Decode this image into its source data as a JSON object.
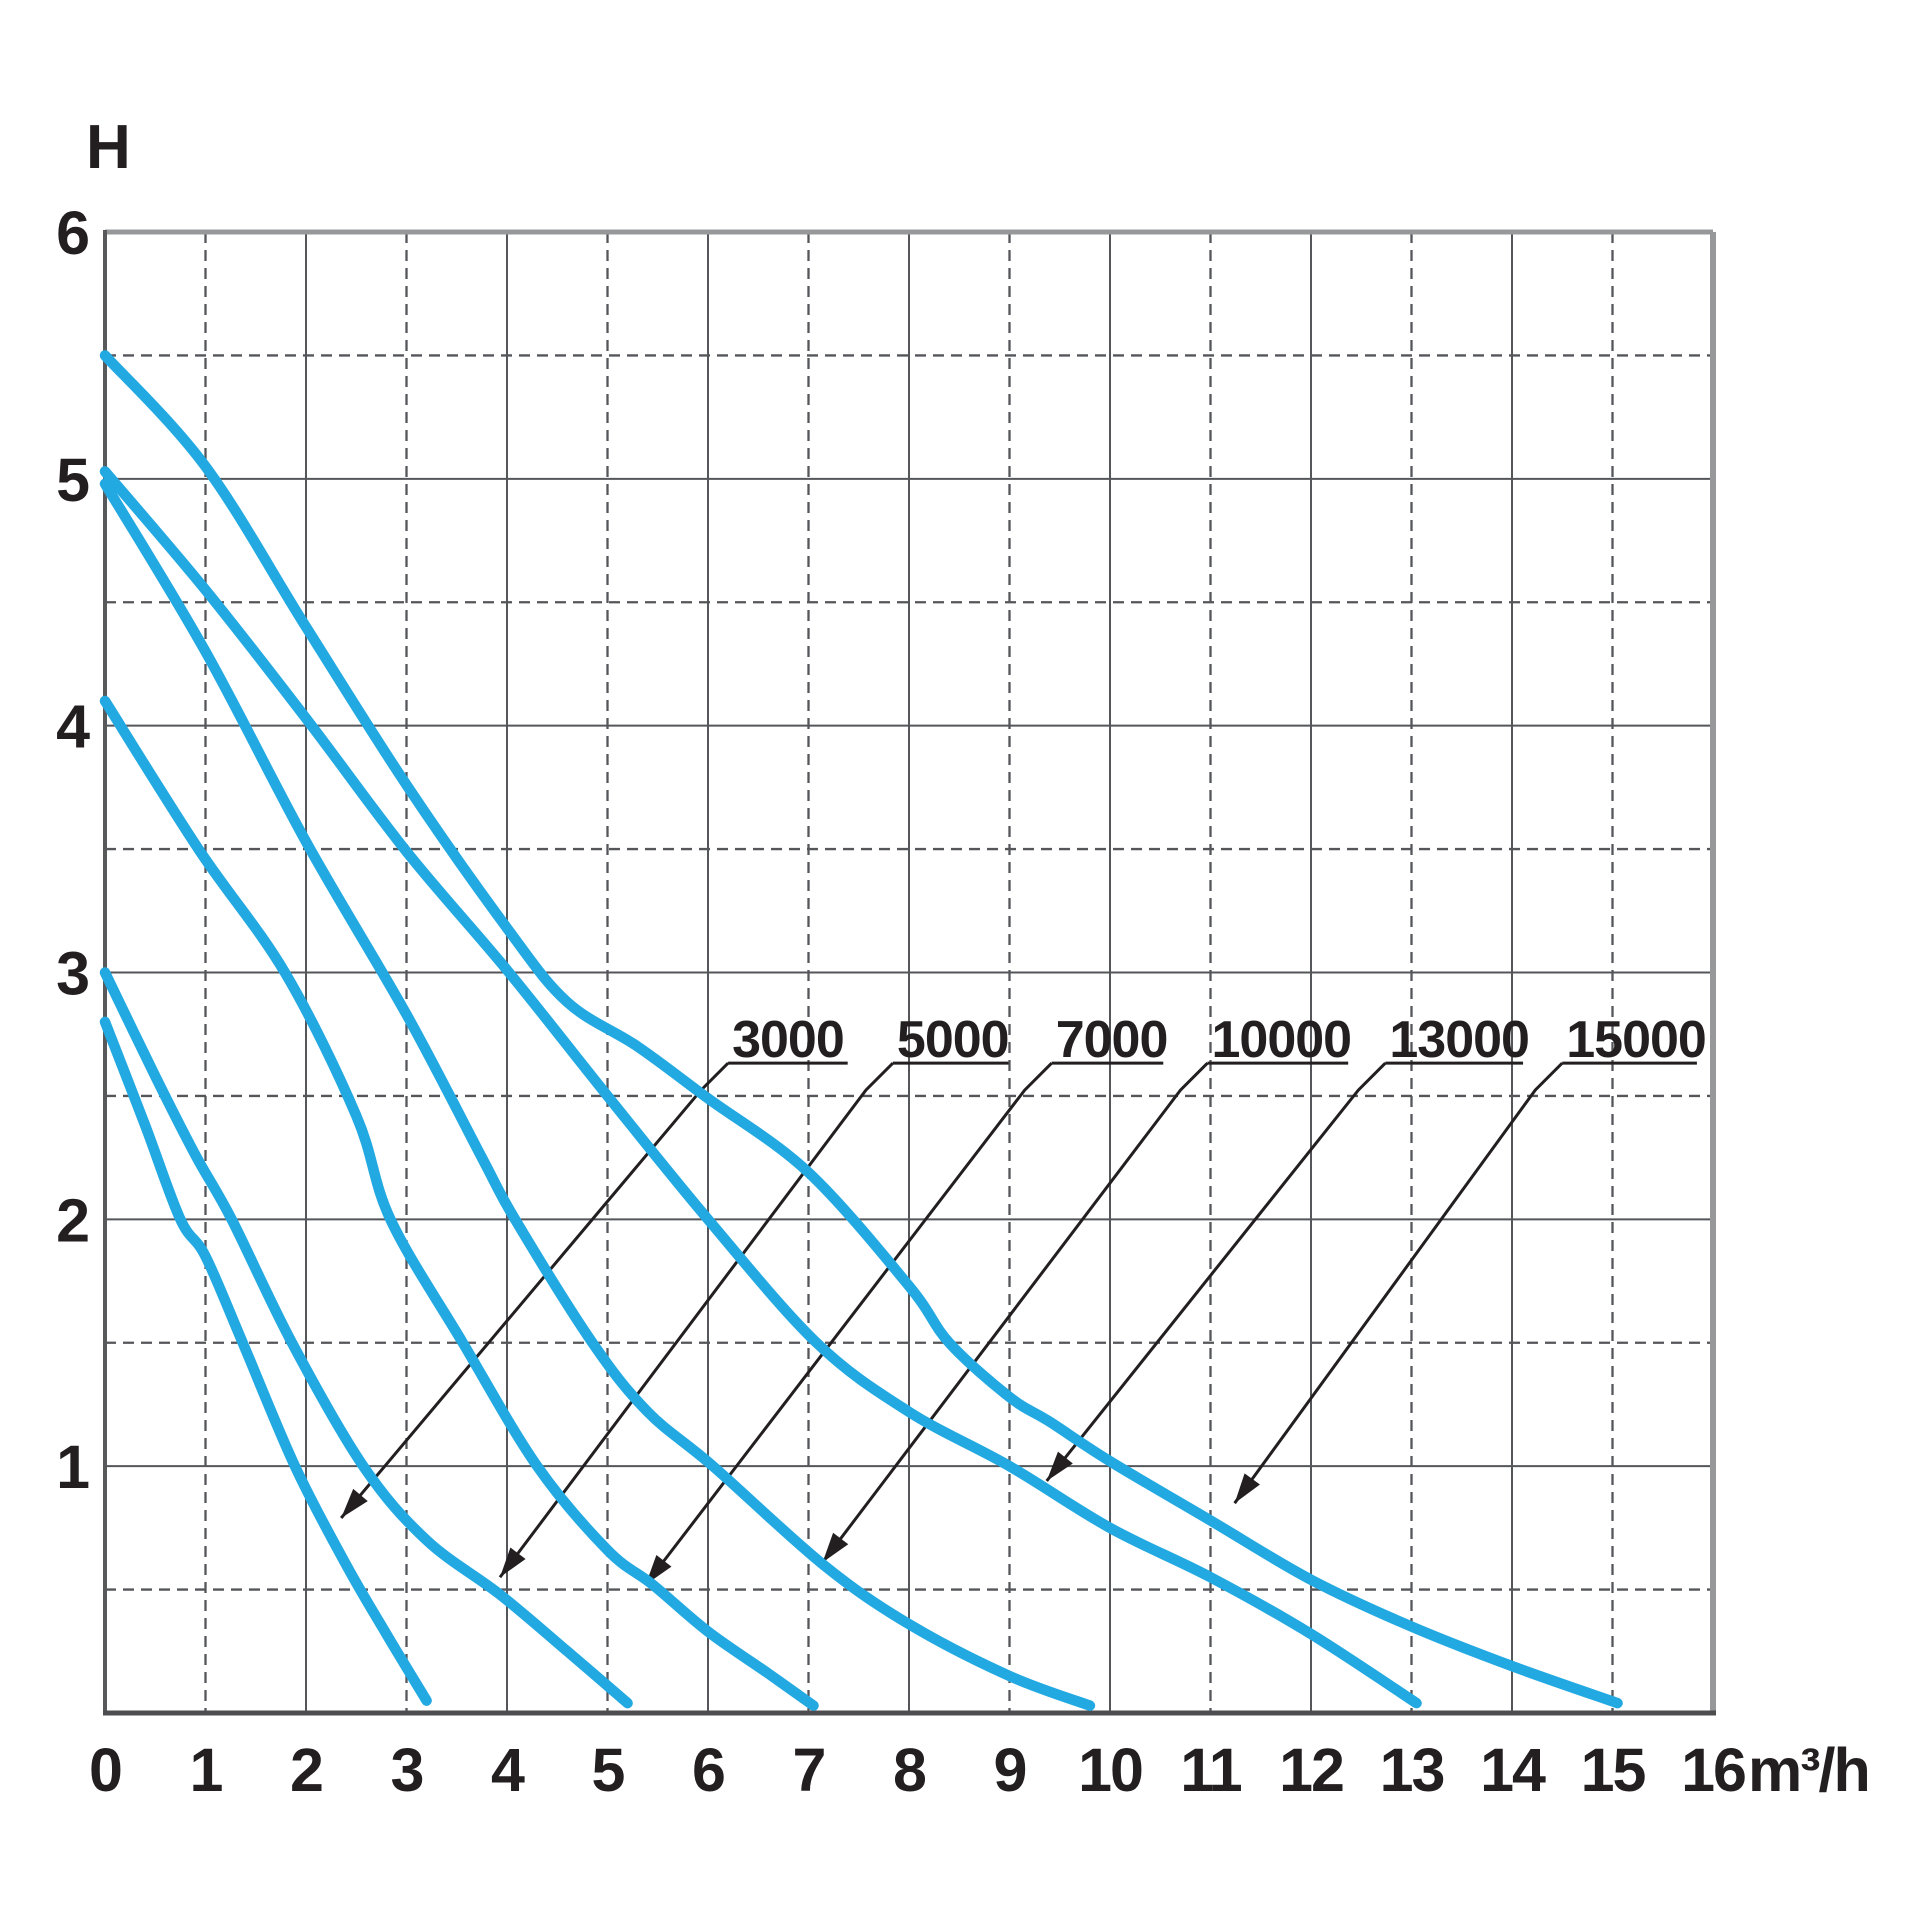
{
  "chart_data": {
    "type": "line",
    "title": "",
    "ylabel": "H",
    "x_unit": "m³/h",
    "xlim": [
      0,
      16
    ],
    "ylim": [
      0,
      6
    ],
    "grid": {
      "vertical": "dashed at odd integers, solid at even integers",
      "horizontal": "solid at integers, dashed at half steps",
      "on": true
    },
    "x_ticks": [
      "0",
      "1",
      "2",
      "3",
      "4",
      "5",
      "6",
      "7",
      "8",
      "9",
      "10",
      "11",
      "12",
      "13",
      "14",
      "15",
      "16"
    ],
    "y_ticks": [
      "1",
      "2",
      "3",
      "4",
      "5",
      "6"
    ],
    "series": [
      {
        "name": "3000",
        "points": [
          [
            0,
            2.8
          ],
          [
            0.4,
            2.38
          ],
          [
            0.75,
            2.0
          ],
          [
            1.0,
            1.85
          ],
          [
            1.37,
            1.5
          ],
          [
            1.89,
            1.0
          ],
          [
            2.4,
            0.6
          ],
          [
            2.8,
            0.32
          ],
          [
            3.2,
            0.05
          ]
        ]
      },
      {
        "name": "5000",
        "points": [
          [
            0,
            3.0
          ],
          [
            0.5,
            2.58
          ],
          [
            0.9,
            2.26
          ],
          [
            1.26,
            2.0
          ],
          [
            1.86,
            1.5
          ],
          [
            2.57,
            1.0
          ],
          [
            3.2,
            0.7
          ],
          [
            3.93,
            0.48
          ],
          [
            4.6,
            0.25
          ],
          [
            5.2,
            0.04
          ]
        ]
      },
      {
        "name": "7000",
        "points": [
          [
            0,
            4.1
          ],
          [
            0.93,
            3.5
          ],
          [
            1.79,
            3.0
          ],
          [
            2.5,
            2.42
          ],
          [
            2.84,
            2.0
          ],
          [
            3.56,
            1.5
          ],
          [
            4.3,
            1.0
          ],
          [
            5.0,
            0.66
          ],
          [
            5.45,
            0.52
          ],
          [
            6.0,
            0.33
          ],
          [
            6.6,
            0.16
          ],
          [
            7.05,
            0.03
          ]
        ]
      },
      {
        "name": "10000",
        "points": [
          [
            0,
            4.98
          ],
          [
            1.0,
            4.3
          ],
          [
            2.0,
            3.53
          ],
          [
            3.0,
            2.83
          ],
          [
            3.75,
            2.25
          ],
          [
            4.08,
            2.0
          ],
          [
            4.85,
            1.5
          ],
          [
            5.4,
            1.22
          ],
          [
            6.05,
            1.0
          ],
          [
            7.15,
            0.6
          ],
          [
            8.0,
            0.36
          ],
          [
            9.0,
            0.15
          ],
          [
            9.8,
            0.03
          ]
        ]
      },
      {
        "name": "13000",
        "points": [
          [
            0,
            5.03
          ],
          [
            1.0,
            4.55
          ],
          [
            2.0,
            4.03
          ],
          [
            3.0,
            3.49
          ],
          [
            4.0,
            3.01
          ],
          [
            5.0,
            2.5
          ],
          [
            6.0,
            2.0
          ],
          [
            7.08,
            1.5
          ],
          [
            8.0,
            1.22
          ],
          [
            9.0,
            1.0
          ],
          [
            10.0,
            0.75
          ],
          [
            11.0,
            0.55
          ],
          [
            12.0,
            0.32
          ],
          [
            13.05,
            0.04
          ]
        ]
      },
      {
        "name": "15000",
        "points": [
          [
            0,
            5.5
          ],
          [
            1.0,
            5.05
          ],
          [
            2.0,
            4.4
          ],
          [
            3.0,
            3.76
          ],
          [
            4.0,
            3.18
          ],
          [
            4.6,
            2.88
          ],
          [
            5.3,
            2.7
          ],
          [
            6.0,
            2.49
          ],
          [
            7.0,
            2.19
          ],
          [
            8.0,
            1.73
          ],
          [
            8.4,
            1.5
          ],
          [
            9.0,
            1.28
          ],
          [
            9.4,
            1.18
          ],
          [
            10.0,
            1.02
          ],
          [
            11.0,
            0.78
          ],
          [
            12.0,
            0.54
          ],
          [
            13.0,
            0.35
          ],
          [
            14.0,
            0.19
          ],
          [
            15.05,
            0.04
          ]
        ]
      }
    ],
    "labels": [
      {
        "text": "3000",
        "underline_from": 6.2,
        "underline_to": 7.39,
        "label_H": 2.633,
        "tip": [
          2.35,
          0.79
        ]
      },
      {
        "text": "5000",
        "underline_from": 7.84,
        "underline_to": 8.99,
        "label_H": 2.633,
        "tip": [
          3.93,
          0.55
        ]
      },
      {
        "text": "7000",
        "underline_from": 9.42,
        "underline_to": 10.53,
        "label_H": 2.633,
        "tip": [
          5.38,
          0.52
        ]
      },
      {
        "text": "10000",
        "underline_from": 10.97,
        "underline_to": 12.37,
        "label_H": 2.633,
        "tip": [
          7.14,
          0.61
        ]
      },
      {
        "text": "13000",
        "underline_from": 12.74,
        "underline_to": 14.11,
        "label_H": 2.633,
        "tip": [
          9.37,
          0.94
        ]
      },
      {
        "text": "15000",
        "underline_from": 14.5,
        "underline_to": 15.84,
        "label_H": 2.633,
        "tip": [
          11.24,
          0.85
        ]
      }
    ],
    "colors": {
      "curve": "#22A9E2",
      "grid": "#55565A",
      "frame_light": "#97989A",
      "frame_dark_left": "#58595B",
      "frame_dark_bottom": "#4D4D4F",
      "annotation": "#231F20",
      "text": "#231F20",
      "background": "#FFFFFF"
    },
    "legend_position": "none"
  }
}
